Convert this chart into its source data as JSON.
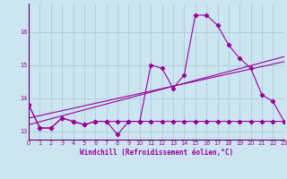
{
  "x": [
    0,
    1,
    2,
    3,
    4,
    5,
    6,
    7,
    8,
    9,
    10,
    11,
    12,
    13,
    14,
    15,
    16,
    17,
    18,
    19,
    20,
    21,
    22,
    23
  ],
  "line1": [
    13.8,
    13.1,
    13.1,
    13.4,
    13.3,
    13.2,
    13.3,
    13.3,
    12.9,
    13.3,
    13.3,
    15.0,
    14.9,
    14.3,
    14.7,
    16.5,
    16.5,
    16.2,
    15.6,
    15.2,
    14.9,
    14.1,
    13.9,
    13.3
  ],
  "line2": [
    13.8,
    13.1,
    13.1,
    13.4,
    13.3,
    13.2,
    13.3,
    13.3,
    13.3,
    13.3,
    13.3,
    13.3,
    13.3,
    13.3,
    13.3,
    13.3,
    13.3,
    13.3,
    13.3,
    13.3,
    13.3,
    13.3,
    13.3,
    13.3
  ],
  "line3_x": [
    0,
    23
  ],
  "line3_y": [
    13.4,
    15.1
  ],
  "line4_x": [
    0,
    23
  ],
  "line4_y": [
    13.2,
    15.25
  ],
  "xlim": [
    0,
    23
  ],
  "ylim": [
    12.75,
    16.85
  ],
  "yticks": [
    13,
    14,
    15,
    16
  ],
  "xticks": [
    0,
    1,
    2,
    3,
    4,
    5,
    6,
    7,
    8,
    9,
    10,
    11,
    12,
    13,
    14,
    15,
    16,
    17,
    18,
    19,
    20,
    21,
    22,
    23
  ],
  "xlabel": "Windchill (Refroidissement éolien,°C)",
  "line_color": "#990099",
  "bg_color": "#cce5f0",
  "grid_color": "#aaccdd",
  "axis_color": "#660066",
  "tick_color": "#990099",
  "label_fontsize": 4.8,
  "xlabel_fontsize": 5.5
}
